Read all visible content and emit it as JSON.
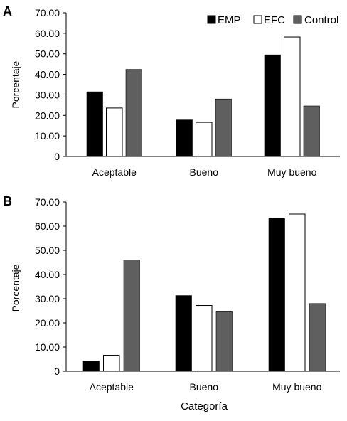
{
  "legend": {
    "items": [
      {
        "label": "EMP",
        "color": "#000000"
      },
      {
        "label": "EFC",
        "color": "#ffffff"
      },
      {
        "label": "Control",
        "color": "#5f5f5f"
      }
    ]
  },
  "xlabel": "Categoría",
  "chart_data": [
    {
      "type": "bar",
      "panel_label": "A",
      "categories": [
        "Aceptable",
        "Bueno",
        "Muy bueno"
      ],
      "series": [
        {
          "name": "EMP",
          "values": [
            31.5,
            17.8,
            49.5
          ]
        },
        {
          "name": "EFC",
          "values": [
            23.6,
            16.6,
            58.2
          ]
        },
        {
          "name": "Control",
          "values": [
            42.4,
            28.0,
            24.6
          ]
        }
      ],
      "ylabel": "Porcentaje",
      "ylim": [
        0,
        70
      ],
      "yticks": [
        "0",
        "10.00",
        "20.00",
        "30.00",
        "40.00",
        "50.00",
        "60.00",
        "70.00"
      ],
      "legend_position": "top-right",
      "grid": false
    },
    {
      "type": "bar",
      "panel_label": "B",
      "categories": [
        "Aceptable",
        "Bueno",
        "Muy bueno"
      ],
      "series": [
        {
          "name": "EMP",
          "values": [
            4.2,
            31.3,
            63.2
          ]
        },
        {
          "name": "EFC",
          "values": [
            6.6,
            27.2,
            65.0
          ]
        },
        {
          "name": "Control",
          "values": [
            46.0,
            24.6,
            28.0
          ]
        }
      ],
      "ylabel": "Porcentaje",
      "xlabel": "Categoría",
      "ylim": [
        0,
        70
      ],
      "yticks": [
        "0",
        "10.00",
        "20.00",
        "30.00",
        "40.00",
        "50.00",
        "60.00",
        "70.00"
      ],
      "grid": false
    }
  ]
}
